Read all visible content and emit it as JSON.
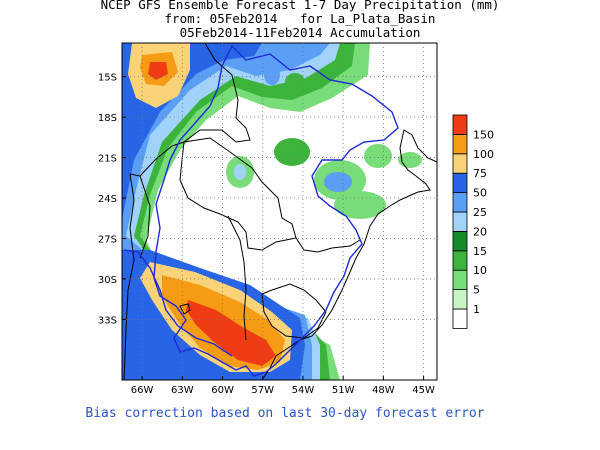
{
  "title": {
    "line1": "NCEP GFS Ensemble Forecast 1-7 Day Precipitation (mm)",
    "line2": "from: 05Feb2014   for La_Plata_Basin",
    "line3": "05Feb2014-11Feb2014 Accumulation"
  },
  "footer": "Bias correction based on last 30-day forecast error",
  "map": {
    "lon_range": [
      -67.5,
      -44
    ],
    "lat_range": [
      -37.5,
      -12.5
    ],
    "lon_ticks": [
      {
        "value": -66,
        "label": "66W"
      },
      {
        "value": -63,
        "label": "63W"
      },
      {
        "value": -60,
        "label": "60W"
      },
      {
        "value": -57,
        "label": "57W"
      },
      {
        "value": -54,
        "label": "54W"
      },
      {
        "value": -51,
        "label": "51W"
      },
      {
        "value": -48,
        "label": "48W"
      },
      {
        "value": -45,
        "label": "45W"
      }
    ],
    "lat_ticks": [
      {
        "value": -15,
        "label": "15S"
      },
      {
        "value": -18,
        "label": "18S"
      },
      {
        "value": -21,
        "label": "21S"
      },
      {
        "value": -24,
        "label": "24S"
      },
      {
        "value": -27,
        "label": "27S"
      },
      {
        "value": -30,
        "label": "30S"
      },
      {
        "value": -33,
        "label": "33S"
      }
    ]
  },
  "legend": {
    "levels": [
      "1",
      "5",
      "10",
      "15",
      "20",
      "25",
      "50",
      "75",
      "100",
      "150"
    ],
    "colors": [
      "#ffffff",
      "#c8f5c8",
      "#78dc78",
      "#3cb43c",
      "#148c28",
      "#a0d2fa",
      "#5a9ff5",
      "#2864e6",
      "#fad278",
      "#f59b14",
      "#ef3c14"
    ]
  }
}
